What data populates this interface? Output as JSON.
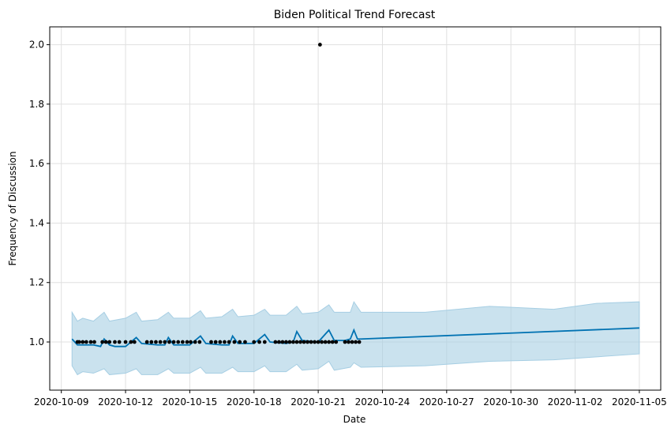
{
  "chart_data": {
    "type": "line",
    "title": "Biden Political Trend Forecast",
    "xlabel": "Date",
    "ylabel": "Frequency of Discussion",
    "x_ticks": [
      "2020-10-09",
      "2020-10-12",
      "2020-10-15",
      "2020-10-18",
      "2020-10-21",
      "2020-10-24",
      "2020-10-27",
      "2020-10-30",
      "2020-11-02",
      "2020-11-05"
    ],
    "y_ticks": [
      "1.0",
      "1.2",
      "1.4",
      "1.6",
      "1.8",
      "2.0"
    ],
    "xlim": [
      "2020-10-08T11:00",
      "2020-11-06T00:00"
    ],
    "ylim": [
      0.838,
      2.06
    ],
    "grid": true,
    "colors": {
      "forecast": "#0072b2",
      "band": "#a6cee3",
      "points": "#000000",
      "grid": "#e0e0e0"
    },
    "series": [
      {
        "name": "observed",
        "kind": "scatter",
        "points": [
          [
            "2020-10-09T18:00",
            1.0
          ],
          [
            "2020-10-09T20:00",
            1.0
          ],
          [
            "2020-10-10T00:00",
            1.0
          ],
          [
            "2020-10-10T04:00",
            1.0
          ],
          [
            "2020-10-10T09:00",
            1.0
          ],
          [
            "2020-10-10T13:00",
            1.0
          ],
          [
            "2020-10-10T22:00",
            1.0
          ],
          [
            "2020-10-11T02:00",
            1.0
          ],
          [
            "2020-10-11T06:00",
            1.0
          ],
          [
            "2020-10-11T12:00",
            1.0
          ],
          [
            "2020-10-11T17:00",
            1.0
          ],
          [
            "2020-10-12T00:00",
            1.0
          ],
          [
            "2020-10-12T06:00",
            1.0
          ],
          [
            "2020-10-12T10:00",
            1.0
          ],
          [
            "2020-10-13T00:00",
            1.0
          ],
          [
            "2020-10-13T05:00",
            1.0
          ],
          [
            "2020-10-13T10:00",
            1.0
          ],
          [
            "2020-10-13T15:00",
            1.0
          ],
          [
            "2020-10-13T20:00",
            1.0
          ],
          [
            "2020-10-14T01:00",
            1.0
          ],
          [
            "2020-10-14T06:00",
            1.0
          ],
          [
            "2020-10-14T11:00",
            1.0
          ],
          [
            "2020-10-14T16:00",
            1.0
          ],
          [
            "2020-10-14T21:00",
            1.0
          ],
          [
            "2020-10-15T01:00",
            1.0
          ],
          [
            "2020-10-15T06:00",
            1.0
          ],
          [
            "2020-10-15T11:00",
            1.0
          ],
          [
            "2020-10-16T00:00",
            1.0
          ],
          [
            "2020-10-16T05:00",
            1.0
          ],
          [
            "2020-10-16T10:00",
            1.0
          ],
          [
            "2020-10-16T15:00",
            1.0
          ],
          [
            "2020-10-16T20:00",
            1.0
          ],
          [
            "2020-10-17T02:00",
            1.0
          ],
          [
            "2020-10-17T08:00",
            1.0
          ],
          [
            "2020-10-17T14:00",
            1.0
          ],
          [
            "2020-10-18T00:00",
            1.0
          ],
          [
            "2020-10-18T06:00",
            1.0
          ],
          [
            "2020-10-18T12:00",
            1.0
          ],
          [
            "2020-10-19T00:00",
            1.0
          ],
          [
            "2020-10-19T04:00",
            1.0
          ],
          [
            "2020-10-19T08:00",
            1.0
          ],
          [
            "2020-10-19T12:00",
            1.0
          ],
          [
            "2020-10-19T16:00",
            1.0
          ],
          [
            "2020-10-19T20:00",
            1.0
          ],
          [
            "2020-10-20T00:00",
            1.0
          ],
          [
            "2020-10-20T04:00",
            1.0
          ],
          [
            "2020-10-20T08:00",
            1.0
          ],
          [
            "2020-10-20T12:00",
            1.0
          ],
          [
            "2020-10-20T16:00",
            1.0
          ],
          [
            "2020-10-20T20:00",
            1.0
          ],
          [
            "2020-10-21T02:00",
            2.0
          ],
          [
            "2020-10-21T00:00",
            1.0
          ],
          [
            "2020-10-21T04:00",
            1.0
          ],
          [
            "2020-10-21T08:00",
            1.0
          ],
          [
            "2020-10-21T12:00",
            1.0
          ],
          [
            "2020-10-21T16:00",
            1.0
          ],
          [
            "2020-10-21T20:00",
            1.0
          ],
          [
            "2020-10-22T06:00",
            1.0
          ],
          [
            "2020-10-22T10:00",
            1.0
          ],
          [
            "2020-10-22T14:00",
            1.0
          ],
          [
            "2020-10-22T18:00",
            1.0
          ],
          [
            "2020-10-22T22:00",
            1.0
          ]
        ]
      },
      {
        "name": "forecast",
        "kind": "line",
        "points": [
          [
            "2020-10-09T12:00",
            1.01
          ],
          [
            "2020-10-09T18:00",
            0.99
          ],
          [
            "2020-10-10T12:00",
            0.99
          ],
          [
            "2020-10-10T20:00",
            0.985
          ],
          [
            "2020-10-11T00:00",
            1.01
          ],
          [
            "2020-10-11T06:00",
            0.99
          ],
          [
            "2020-10-11T12:00",
            0.985
          ],
          [
            "2020-10-12T00:00",
            0.985
          ],
          [
            "2020-10-12T12:00",
            1.015
          ],
          [
            "2020-10-12T18:00",
            0.995
          ],
          [
            "2020-10-13T12:00",
            0.99
          ],
          [
            "2020-10-13T20:00",
            0.99
          ],
          [
            "2020-10-14T00:00",
            1.015
          ],
          [
            "2020-10-14T06:00",
            0.99
          ],
          [
            "2020-10-15T00:00",
            0.99
          ],
          [
            "2020-10-15T12:00",
            1.02
          ],
          [
            "2020-10-15T18:00",
            0.995
          ],
          [
            "2020-10-16T12:00",
            0.99
          ],
          [
            "2020-10-16T20:00",
            0.99
          ],
          [
            "2020-10-17T00:00",
            1.02
          ],
          [
            "2020-10-17T06:00",
            0.995
          ],
          [
            "2020-10-18T00:00",
            0.995
          ],
          [
            "2020-10-18T12:00",
            1.025
          ],
          [
            "2020-10-18T18:00",
            1.0
          ],
          [
            "2020-10-19T12:00",
            0.995
          ],
          [
            "2020-10-19T20:00",
            1.0
          ],
          [
            "2020-10-20T00:00",
            1.035
          ],
          [
            "2020-10-20T06:00",
            1.005
          ],
          [
            "2020-10-21T00:00",
            1.0
          ],
          [
            "2020-10-21T12:00",
            1.04
          ],
          [
            "2020-10-21T18:00",
            1.005
          ],
          [
            "2020-10-22T06:00",
            1.005
          ],
          [
            "2020-10-22T12:00",
            1.01
          ],
          [
            "2020-10-22T16:00",
            1.04
          ],
          [
            "2020-10-22T20:00",
            1.01
          ],
          [
            "2020-10-23T00:00",
            1.01
          ],
          [
            "2020-11-05T00:00",
            1.047
          ]
        ]
      },
      {
        "name": "uncertainty",
        "kind": "band",
        "points": [
          [
            "2020-10-09T12:00",
            0.92,
            1.1
          ],
          [
            "2020-10-09T18:00",
            0.89,
            1.07
          ],
          [
            "2020-10-10T00:00",
            0.9,
            1.08
          ],
          [
            "2020-10-10T12:00",
            0.895,
            1.07
          ],
          [
            "2020-10-11T00:00",
            0.91,
            1.1
          ],
          [
            "2020-10-11T06:00",
            0.89,
            1.07
          ],
          [
            "2020-10-12T00:00",
            0.895,
            1.08
          ],
          [
            "2020-10-12T12:00",
            0.91,
            1.1
          ],
          [
            "2020-10-12T18:00",
            0.89,
            1.07
          ],
          [
            "2020-10-13T12:00",
            0.89,
            1.075
          ],
          [
            "2020-10-14T00:00",
            0.91,
            1.1
          ],
          [
            "2020-10-14T06:00",
            0.895,
            1.08
          ],
          [
            "2020-10-15T00:00",
            0.895,
            1.08
          ],
          [
            "2020-10-15T12:00",
            0.915,
            1.105
          ],
          [
            "2020-10-15T18:00",
            0.895,
            1.08
          ],
          [
            "2020-10-16T12:00",
            0.895,
            1.085
          ],
          [
            "2020-10-17T00:00",
            0.915,
            1.11
          ],
          [
            "2020-10-17T06:00",
            0.9,
            1.085
          ],
          [
            "2020-10-18T00:00",
            0.9,
            1.09
          ],
          [
            "2020-10-18T12:00",
            0.92,
            1.11
          ],
          [
            "2020-10-18T18:00",
            0.9,
            1.09
          ],
          [
            "2020-10-19T12:00",
            0.9,
            1.09
          ],
          [
            "2020-10-20T00:00",
            0.925,
            1.12
          ],
          [
            "2020-10-20T06:00",
            0.905,
            1.095
          ],
          [
            "2020-10-21T00:00",
            0.91,
            1.1
          ],
          [
            "2020-10-21T12:00",
            0.935,
            1.125
          ],
          [
            "2020-10-21T18:00",
            0.905,
            1.1
          ],
          [
            "2020-10-22T12:00",
            0.915,
            1.1
          ],
          [
            "2020-10-22T16:00",
            0.93,
            1.135
          ],
          [
            "2020-10-23T00:00",
            0.915,
            1.1
          ],
          [
            "2020-10-26T00:00",
            0.92,
            1.1
          ],
          [
            "2020-10-29T00:00",
            0.935,
            1.12
          ],
          [
            "2020-11-01T00:00",
            0.94,
            1.11
          ],
          [
            "2020-11-03T00:00",
            0.95,
            1.13
          ],
          [
            "2020-11-05T00:00",
            0.96,
            1.135
          ]
        ]
      }
    ]
  }
}
